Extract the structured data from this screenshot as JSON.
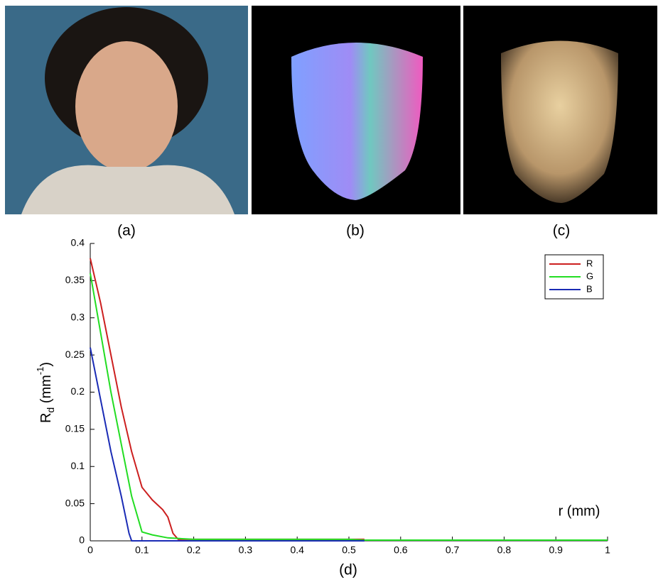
{
  "panels": [
    {
      "label": "(a)"
    },
    {
      "label": "(b)"
    },
    {
      "label": "(c)"
    }
  ],
  "chart_data": {
    "type": "line",
    "label": "(d)",
    "xlabel": "r (mm)",
    "ylabel": [
      "R",
      "d",
      " (mm",
      "-1",
      ")"
    ],
    "xlim": [
      0,
      1
    ],
    "xticks": [
      0,
      0.1,
      0.2,
      0.3,
      0.4,
      0.5,
      0.6,
      0.7,
      0.8,
      0.9,
      1
    ],
    "ylim": [
      0,
      0.4
    ],
    "yticks": [
      0,
      0.05,
      0.1,
      0.15,
      0.2,
      0.25,
      0.3,
      0.35,
      0.4
    ],
    "legend": "upper right",
    "series": [
      {
        "name": "R",
        "color": "#cc1f1f",
        "x": [
          0,
          0.02,
          0.04,
          0.06,
          0.08,
          0.1,
          0.12,
          0.14,
          0.15,
          0.16,
          0.17,
          0.2,
          0.53
        ],
        "values": [
          0.38,
          0.32,
          0.25,
          0.18,
          0.12,
          0.072,
          0.055,
          0.042,
          0.032,
          0.01,
          0.002,
          0.002,
          0.002
        ]
      },
      {
        "name": "G",
        "color": "#22dd22",
        "x": [
          0,
          0.02,
          0.04,
          0.06,
          0.08,
          0.1,
          0.12,
          0.15,
          0.2,
          0.5,
          0.53,
          1
        ],
        "values": [
          0.36,
          0.28,
          0.2,
          0.13,
          0.06,
          0.012,
          0.008,
          0.004,
          0.002,
          0.002,
          0.001,
          0.001
        ]
      },
      {
        "name": "B",
        "color": "#1a2bb5",
        "x": [
          0,
          0.02,
          0.04,
          0.06,
          0.075,
          0.08,
          0.2,
          0.53
        ],
        "values": [
          0.26,
          0.19,
          0.12,
          0.06,
          0.01,
          0,
          0,
          0
        ]
      }
    ]
  }
}
